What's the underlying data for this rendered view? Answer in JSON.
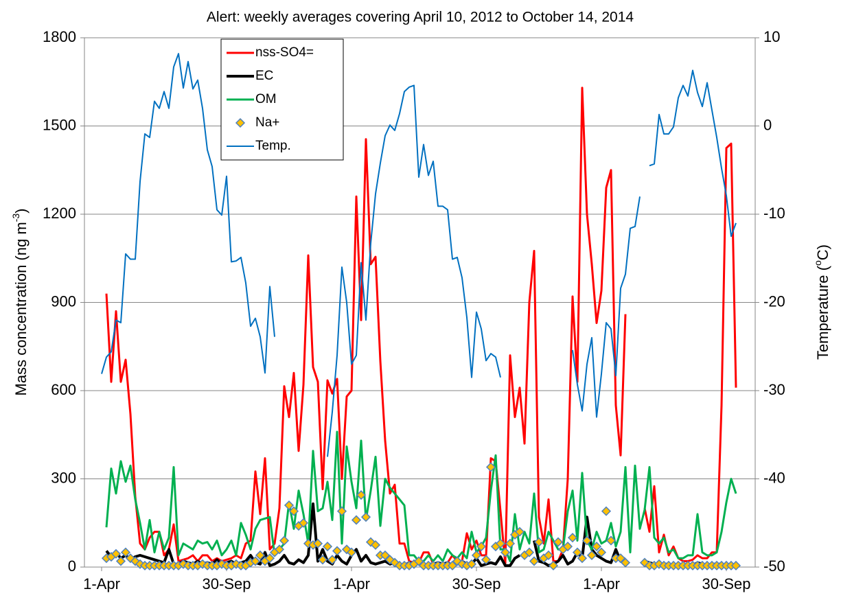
{
  "chart_data": {
    "type": "line",
    "title": "Alert: weekly averages covering April 10, 2012 to October 14, 2014",
    "ylabel": {
      "text": "Mass concentration (ng m",
      "sup": "-3",
      "end": ")"
    },
    "y2label": {
      "text": "Temperature (",
      "sup": "o",
      "end": "C)"
    },
    "ylim": [
      0,
      1800
    ],
    "yticks": [
      0,
      300,
      600,
      900,
      1200,
      1500,
      1800
    ],
    "y2lim": [
      -50,
      10
    ],
    "y2ticks": [
      -50,
      -40,
      -30,
      -20,
      -10,
      0,
      10
    ],
    "grid": true,
    "legend": "top-left",
    "categories": [
      "1-Apr",
      null,
      null,
      null,
      null,
      null,
      null,
      null,
      null,
      null,
      null,
      null,
      null,
      null,
      null,
      null,
      null,
      null,
      null,
      null,
      null,
      null,
      null,
      null,
      null,
      null,
      "30-Sep",
      null,
      null,
      null,
      null,
      null,
      null,
      null,
      null,
      null,
      null,
      null,
      null,
      null,
      null,
      null,
      null,
      null,
      null,
      null,
      null,
      null,
      null,
      null,
      null,
      null,
      "1-Apr",
      null,
      null,
      null,
      null,
      null,
      null,
      null,
      null,
      null,
      null,
      null,
      null,
      null,
      null,
      null,
      null,
      null,
      null,
      null,
      null,
      null,
      null,
      null,
      null,
      null,
      "30-Sep",
      null,
      null,
      null,
      null,
      null,
      null,
      null,
      null,
      null,
      null,
      null,
      null,
      null,
      null,
      null,
      null,
      null,
      null,
      null,
      null,
      null,
      null,
      null,
      null,
      null,
      "1-Apr",
      null,
      null,
      null,
      null,
      null,
      null,
      null,
      null,
      null,
      null,
      null,
      null,
      null,
      null,
      null,
      null,
      null,
      null,
      null,
      null,
      null,
      null,
      null,
      null,
      null,
      "30-Sep",
      null,
      null
    ],
    "series": [
      {
        "name": "nss-SO4=",
        "color": "#ff0000",
        "linewidth": 3,
        "values": [
          null,
          930,
          630,
          870,
          630,
          705,
          520,
          240,
          80,
          60,
          100,
          120,
          120,
          40,
          60,
          145,
          20,
          25,
          30,
          40,
          20,
          40,
          40,
          20,
          30,
          20,
          25,
          30,
          40,
          30,
          80,
          90,
          325,
          180,
          370,
          60,
          80,
          200,
          615,
          510,
          660,
          395,
          620,
          1060,
          680,
          630,
          265,
          635,
          590,
          640,
          300,
          580,
          600,
          1260,
          840,
          1455,
          1030,
          1055,
          700,
          430,
          250,
          280,
          80,
          80,
          20,
          15,
          15,
          50,
          50,
          10,
          10,
          10,
          15,
          40,
          20,
          20,
          115,
          60,
          90,
          40,
          40,
          370,
          360,
          190,
          10,
          720,
          510,
          610,
          420,
          900,
          1075,
          170,
          80,
          230,
          20,
          20,
          60,
          300,
          920,
          630,
          1630,
          1200,
          1030,
          830,
          940,
          1290,
          1350,
          550,
          380,
          860,
          null,
          null,
          null,
          200,
          120,
          275,
          50,
          110,
          40,
          70,
          30,
          20,
          20,
          25,
          40,
          30,
          30,
          50,
          50,
          550,
          1425,
          1440,
          610
        ]
      },
      {
        "name": "EC",
        "color": "#000000",
        "linewidth": 4,
        "values": [
          null,
          55,
          35,
          50,
          30,
          40,
          25,
          35,
          40,
          35,
          30,
          25,
          20,
          15,
          60,
          10,
          10,
          20,
          15,
          10,
          20,
          10,
          15,
          10,
          25,
          10,
          15,
          20,
          10,
          15,
          20,
          40,
          15,
          10,
          50,
          5,
          10,
          20,
          40,
          15,
          10,
          25,
          15,
          40,
          215,
          20,
          60,
          20,
          10,
          40,
          20,
          10,
          40,
          60,
          20,
          40,
          15,
          10,
          15,
          20,
          10,
          15,
          10,
          5,
          15,
          10,
          15,
          5,
          10,
          10,
          15,
          10,
          15,
          5,
          10,
          20,
          10,
          10,
          30,
          5,
          10,
          15,
          10,
          35,
          5,
          5,
          30,
          40,
          null,
          null,
          90,
          20,
          15,
          5,
          10,
          20,
          40,
          10,
          20,
          50,
          30,
          170,
          60,
          40,
          30,
          20,
          15,
          60,
          20,
          30,
          null,
          null,
          null,
          20,
          15,
          10,
          5,
          10,
          10,
          5,
          10,
          5,
          10,
          5,
          15,
          10,
          5,
          10,
          10,
          10,
          5,
          10,
          5
        ]
      },
      {
        "name": "OM",
        "color": "#00b050",
        "linewidth": 3,
        "values": [
          null,
          135,
          335,
          250,
          360,
          290,
          345,
          230,
          150,
          60,
          160,
          50,
          120,
          60,
          100,
          340,
          40,
          80,
          70,
          60,
          90,
          80,
          85,
          60,
          90,
          40,
          60,
          90,
          40,
          150,
          110,
          60,
          130,
          160,
          165,
          170,
          40,
          60,
          80,
          220,
          130,
          260,
          180,
          80,
          395,
          190,
          200,
          290,
          160,
          460,
          80,
          410,
          290,
          200,
          430,
          160,
          260,
          375,
          140,
          300,
          270,
          250,
          230,
          210,
          40,
          40,
          20,
          20,
          40,
          20,
          40,
          20,
          60,
          40,
          30,
          50,
          30,
          120,
          50,
          70,
          100,
          260,
          380,
          60,
          60,
          20,
          180,
          60,
          120,
          80,
          250,
          50,
          60,
          120,
          90,
          60,
          60,
          190,
          260,
          90,
          320,
          90,
          60,
          120,
          80,
          90,
          150,
          70,
          120,
          340,
          50,
          345,
          130,
          195,
          340,
          100,
          80,
          100,
          50,
          60,
          30,
          30,
          40,
          40,
          180,
          50,
          40,
          40,
          50,
          120,
          220,
          300,
          250
        ]
      },
      {
        "name": "Na+",
        "color": "#ffc000",
        "edgecolor": "#4f81bd",
        "marker": "diamond",
        "values": [
          null,
          30,
          35,
          45,
          20,
          50,
          30,
          20,
          10,
          5,
          5,
          5,
          5,
          5,
          5,
          5,
          5,
          10,
          5,
          5,
          5,
          10,
          5,
          5,
          5,
          10,
          5,
          5,
          10,
          5,
          5,
          15,
          20,
          40,
          20,
          30,
          50,
          60,
          90,
          210,
          190,
          140,
          150,
          80,
          75,
          80,
          25,
          70,
          25,
          55,
          190,
          60,
          50,
          160,
          245,
          170,
          85,
          75,
          40,
          40,
          25,
          15,
          5,
          5,
          5,
          10,
          20,
          5,
          5,
          5,
          5,
          5,
          5,
          5,
          20,
          10,
          5,
          10,
          40,
          70,
          25,
          340,
          70,
          80,
          50,
          80,
          110,
          120,
          40,
          50,
          20,
          85,
          30,
          40,
          5,
          85,
          60,
          70,
          100,
          50,
          30,
          90,
          40,
          70,
          50,
          190,
          90,
          30,
          30,
          15,
          null,
          null,
          null,
          15,
          5,
          5,
          10,
          5,
          5,
          5,
          5,
          5,
          5,
          5,
          5,
          5,
          5,
          5,
          5,
          5,
          5,
          5,
          5
        ]
      },
      {
        "name": "Temp.",
        "color": "#0070c0",
        "linewidth": 2,
        "axis": "y2",
        "values": [
          -28.1,
          -26.2,
          -25.6,
          -22,
          -22.3,
          -14.5,
          -15.1,
          -15.1,
          -6.3,
          -0.9,
          -1.3,
          2.8,
          2,
          3.9,
          2,
          6.7,
          8.2,
          4.3,
          7.3,
          4.2,
          5.2,
          2,
          -2.7,
          -4.6,
          -9.5,
          -10.1,
          -5.7,
          -15.4,
          -15.3,
          -14.9,
          -17.8,
          -22.7,
          -21.8,
          -23.9,
          -28,
          -18.2,
          -23.9,
          null,
          null,
          null,
          null,
          null,
          null,
          null,
          null,
          null,
          null,
          -37.5,
          -32.4,
          -26,
          -16,
          -20,
          -27,
          -26,
          -15.5,
          -22,
          -13.3,
          -7.7,
          -4.2,
          -1.1,
          0.1,
          -0.5,
          1.4,
          3.9,
          4.4,
          4.6,
          -5.8,
          -2.1,
          -5.6,
          -4,
          -9.1,
          -9.1,
          -9.5,
          -15.1,
          -14.9,
          -17.2,
          -21.7,
          -28.5,
          -21.1,
          -23,
          -26.6,
          -25.8,
          -26.2,
          -28.5,
          null,
          null,
          null,
          null,
          null,
          null,
          null,
          null,
          null,
          null,
          null,
          null,
          null,
          null,
          -25.4,
          -29.3,
          -32.3,
          -27,
          -24,
          -33,
          -28.1,
          -22.3,
          -23,
          -28.3,
          -18.4,
          -16.8,
          -11.6,
          -11.4,
          -8,
          null,
          -4.5,
          -4.3,
          1.3,
          -0.9,
          -0.9,
          -0.1,
          3.2,
          4.6,
          3.4,
          6.3,
          3.8,
          2.2,
          4.9,
          1.8,
          -1.3,
          -4.8,
          -7.9,
          -12.5,
          -11
        ]
      }
    ]
  }
}
